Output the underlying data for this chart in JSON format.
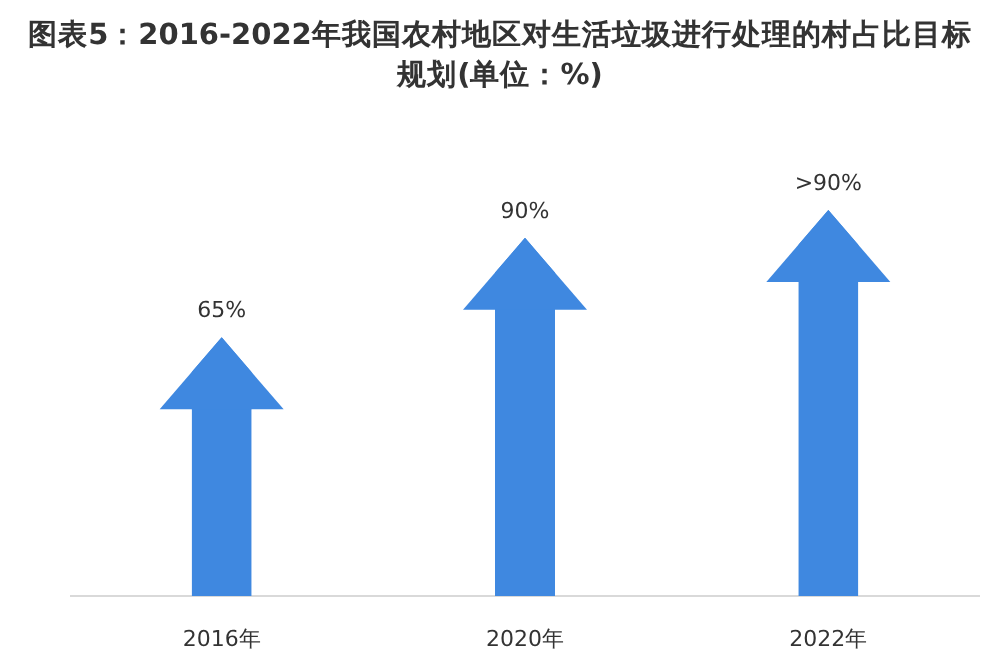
{
  "chart_data": {
    "type": "bar",
    "title": "图表5：2016-2022年我国农村地区对生活垃圾进行处理的村占比目标规划(单位：%)",
    "categories": [
      "2016年",
      "2020年",
      "2022年"
    ],
    "values": [
      65,
      90,
      97
    ],
    "value_labels": [
      "65%",
      "90%",
      ">90%"
    ],
    "color": "#3f88e0"
  }
}
